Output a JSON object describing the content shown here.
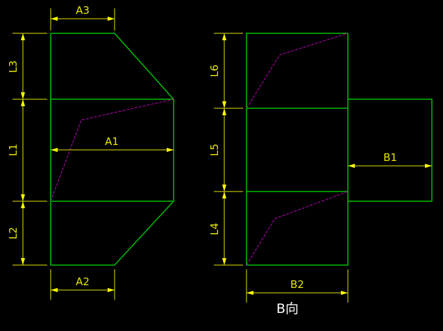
{
  "colors": {
    "background": "#000000",
    "outline": "#00c000",
    "dimension": "#e6e600",
    "bend_line": "#c000c0",
    "caption": "#ffffff"
  },
  "front_view": {
    "dimensions": {
      "A1": "A1",
      "A2": "A2",
      "A3": "A3",
      "L1": "L1",
      "L2": "L2",
      "L3": "L3"
    }
  },
  "side_view": {
    "dimensions": {
      "B1": "B1",
      "B2": "B2",
      "L4": "L4",
      "L5": "L5",
      "L6": "L6"
    },
    "caption": "B向"
  }
}
